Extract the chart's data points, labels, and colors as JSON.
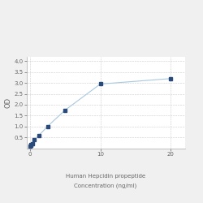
{
  "x": [
    0,
    0.078125,
    0.15625,
    0.3125,
    0.625,
    1.25,
    2.5,
    5,
    10,
    20
  ],
  "y": [
    0.105,
    0.115,
    0.15,
    0.22,
    0.38,
    0.58,
    1.0,
    1.75,
    2.95,
    3.2
  ],
  "line_color": "#a8c8e0",
  "marker_color": "#2a4a7a",
  "marker_size": 3,
  "xlabel_line1": "Human Hepcidin propeptide",
  "xlabel_line2": "Concentration (ng/ml)",
  "ylabel": "OD",
  "xlim": [
    -0.5,
    22
  ],
  "ylim": [
    0,
    4.2
  ],
  "xticks": [
    0,
    10,
    20
  ],
  "yticks": [
    0.5,
    1.0,
    1.5,
    2.0,
    2.5,
    3.0,
    3.5,
    4.0
  ],
  "grid_color": "#cccccc",
  "plot_bg_color": "#ffffff",
  "fig_bg_color": "#f0f0f0",
  "label_fontsize": 5,
  "tick_fontsize": 5
}
